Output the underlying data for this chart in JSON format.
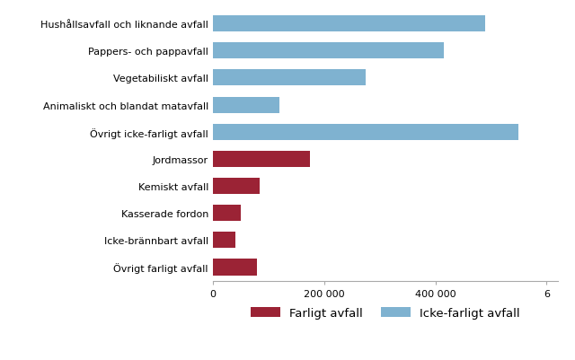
{
  "categories": [
    "Hushållsavfall och liknande avfall",
    "Pappers- och pappavfall",
    "Vegetabiliskt avfall",
    "Animaliskt och blandat matavfall",
    "Övrigt icke-farligt avfall",
    "Jordmassor",
    "Kemiskt avfall",
    "Kasserade fordon",
    "Icke-brännbart avfall",
    "Övrigt farligt avfall"
  ],
  "values": [
    490000,
    415000,
    275000,
    120000,
    550000,
    175000,
    85000,
    50000,
    40000,
    80000
  ],
  "types": [
    "icke-farligt",
    "icke-farligt",
    "icke-farligt",
    "icke-farligt",
    "icke-farligt",
    "farligt",
    "farligt",
    "farligt",
    "farligt",
    "farligt"
  ],
  "color_farligt": "#9b2335",
  "color_icke_farligt": "#7fb2d0",
  "legend_farligt": "Farligt avfall",
  "legend_icke_farligt": "Icke-farligt avfall",
  "xlim_max": 620000,
  "background_color": "#ffffff",
  "bar_height": 0.6,
  "fontsize_labels": 8.0,
  "fontsize_ticks": 8.0,
  "fontsize_legend": 9.5
}
